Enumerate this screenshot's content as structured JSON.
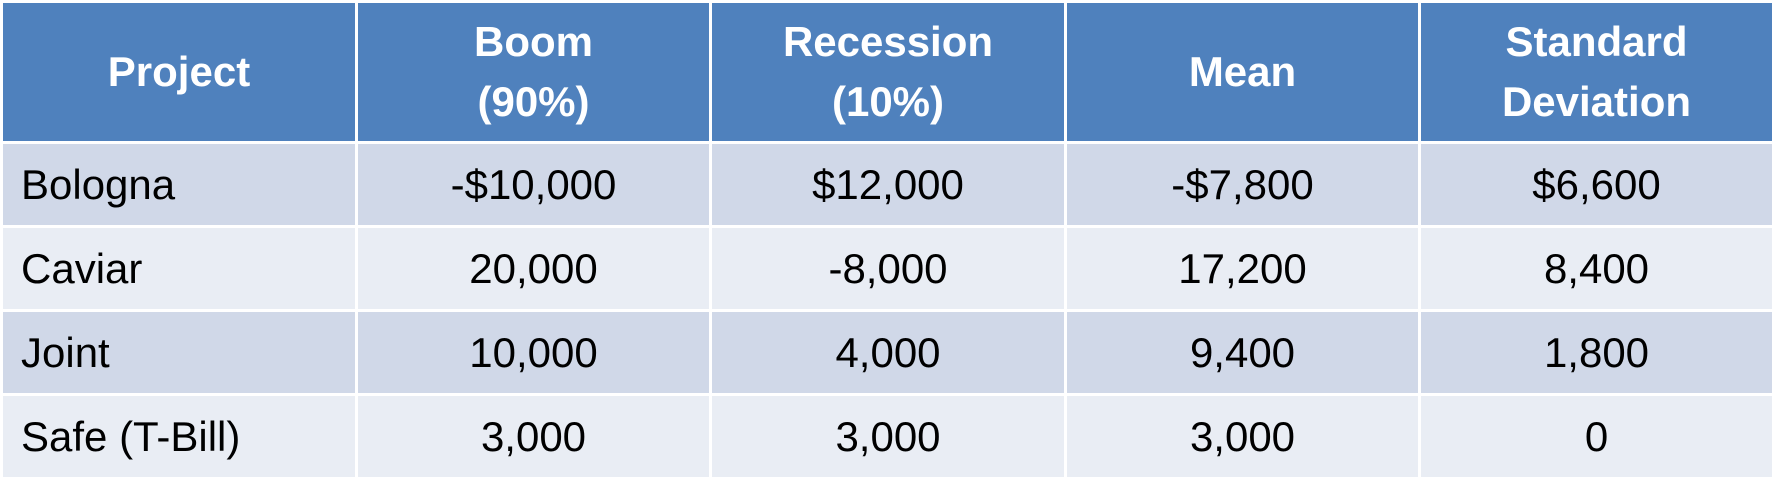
{
  "colors": {
    "header_bg": "#4f81bd",
    "header_text": "#ffffff",
    "row_band_dark": "#d0d8e8",
    "row_band_light": "#e9edf4",
    "cell_text": "#000000"
  },
  "table": {
    "headers": [
      {
        "line1": "Project",
        "line2": ""
      },
      {
        "line1": "Boom",
        "line2": "(90%)"
      },
      {
        "line1": "Recession",
        "line2": "(10%)"
      },
      {
        "line1": "Mean",
        "line2": ""
      },
      {
        "line1": "Standard",
        "line2": "Deviation"
      }
    ],
    "rows": [
      {
        "project": "Bologna",
        "boom": "-$10,000",
        "recession": "$12,000",
        "mean": "-$7,800",
        "std_dev": "$6,600"
      },
      {
        "project": "Caviar",
        "boom": "20,000",
        "recession": "-8,000",
        "mean": "17,200",
        "std_dev": "8,400"
      },
      {
        "project": "Joint",
        "boom": "10,000",
        "recession": "4,000",
        "mean": "9,400",
        "std_dev": "1,800"
      },
      {
        "project": "Safe (T-Bill)",
        "boom": "3,000",
        "recession": "3,000",
        "mean": "3,000",
        "std_dev": "0"
      }
    ]
  }
}
